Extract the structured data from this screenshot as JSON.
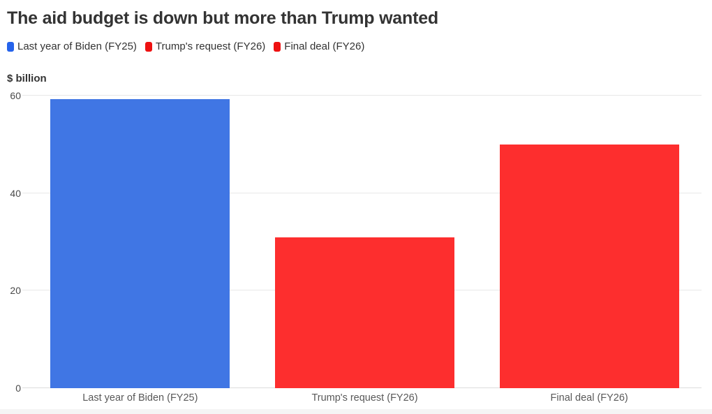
{
  "title": "The aid budget is down but more than Trump wanted",
  "legend": {
    "items": [
      {
        "label": "Last year of Biden (FY25)",
        "color": "#2563eb"
      },
      {
        "label": "Trump's request (FY26)",
        "color": "#ee1111"
      },
      {
        "label": "Final deal (FY26)",
        "color": "#ee1111"
      }
    ]
  },
  "chart_data": {
    "type": "bar",
    "title": "The aid budget is down but more than Trump wanted",
    "categories": [
      "Last year of Biden (FY25)",
      "Trump's request (FY26)",
      "Final deal (FY26)"
    ],
    "values": [
      59.3,
      31,
      50
    ],
    "bar_colors": [
      "#4076e4",
      "#fd2e2e",
      "#fd2e2e"
    ],
    "xlabel": "",
    "ylabel": "$ billion",
    "ylim": [
      0,
      60
    ],
    "yticks": [
      0,
      20,
      40,
      60
    ],
    "grid": "horizontal",
    "legend_position": "top",
    "legend": [
      "Last year of Biden (FY25)",
      "Trump's request (FY26)",
      "Final deal (FY26)"
    ]
  }
}
